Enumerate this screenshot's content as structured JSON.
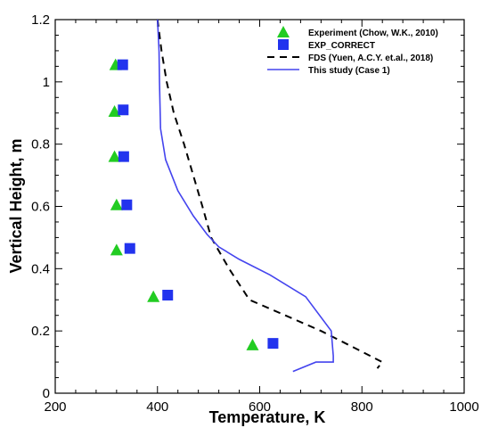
{
  "chart_data": {
    "type": "scatter",
    "xlabel": "Temperature, K",
    "ylabel": "Vertical Height, m",
    "xlim": [
      200,
      1000
    ],
    "ylim": [
      0,
      1.2
    ],
    "xticks": [
      200,
      400,
      600,
      800,
      1000
    ],
    "yticks": [
      0,
      0.2,
      0.4,
      0.6,
      0.8,
      1,
      1.2
    ],
    "x_tick_labels": [
      "200",
      "400",
      "600",
      "800",
      "1000"
    ],
    "y_tick_labels": [
      "0",
      "0.2",
      "0.4",
      "0.6",
      "0.8",
      "1",
      "1.2"
    ],
    "grid": false,
    "legend_position": "top-right",
    "series": [
      {
        "name": "Experiment (Chow, W.K., 2010)",
        "kind": "marker",
        "marker": "triangle",
        "color": "#22cc22",
        "points": [
          [
            318,
            1.055
          ],
          [
            316,
            0.905
          ],
          [
            316,
            0.76
          ],
          [
            320,
            0.605
          ],
          [
            320,
            0.46
          ],
          [
            392,
            0.31
          ],
          [
            586,
            0.155
          ]
        ]
      },
      {
        "name": "EXP_CORRECT",
        "kind": "marker",
        "marker": "square",
        "color": "#2233ee",
        "points": [
          [
            332,
            1.055
          ],
          [
            333,
            0.91
          ],
          [
            334,
            0.76
          ],
          [
            340,
            0.605
          ],
          [
            346,
            0.465
          ],
          [
            420,
            0.315
          ],
          [
            626,
            0.16
          ]
        ]
      },
      {
        "name": "FDS (Yuen, A.C.Y. et.al., 2018)",
        "kind": "line",
        "dash": "dashed",
        "color": "#000000",
        "points": [
          [
            400,
            1.2
          ],
          [
            408,
            1.1
          ],
          [
            418,
            1.0
          ],
          [
            432,
            0.9
          ],
          [
            452,
            0.8
          ],
          [
            470,
            0.7
          ],
          [
            488,
            0.6
          ],
          [
            505,
            0.5
          ],
          [
            540,
            0.4
          ],
          [
            580,
            0.3
          ],
          [
            650,
            0.25
          ],
          [
            720,
            0.2
          ],
          [
            780,
            0.15
          ],
          [
            840,
            0.1
          ],
          [
            830,
            0.08
          ]
        ]
      },
      {
        "name": "This study (Case 1)",
        "kind": "line",
        "dash": "solid",
        "color": "#4444ee",
        "points": [
          [
            400,
            1.2
          ],
          [
            403,
            1.1
          ],
          [
            404,
            1.0
          ],
          [
            406,
            0.85
          ],
          [
            416,
            0.75
          ],
          [
            440,
            0.65
          ],
          [
            470,
            0.57
          ],
          [
            497,
            0.51
          ],
          [
            520,
            0.47
          ],
          [
            560,
            0.43
          ],
          [
            620,
            0.38
          ],
          [
            690,
            0.31
          ],
          [
            740,
            0.2
          ],
          [
            744,
            0.12
          ],
          [
            744,
            0.1
          ],
          [
            710,
            0.1
          ],
          [
            665,
            0.07
          ]
        ]
      }
    ]
  }
}
